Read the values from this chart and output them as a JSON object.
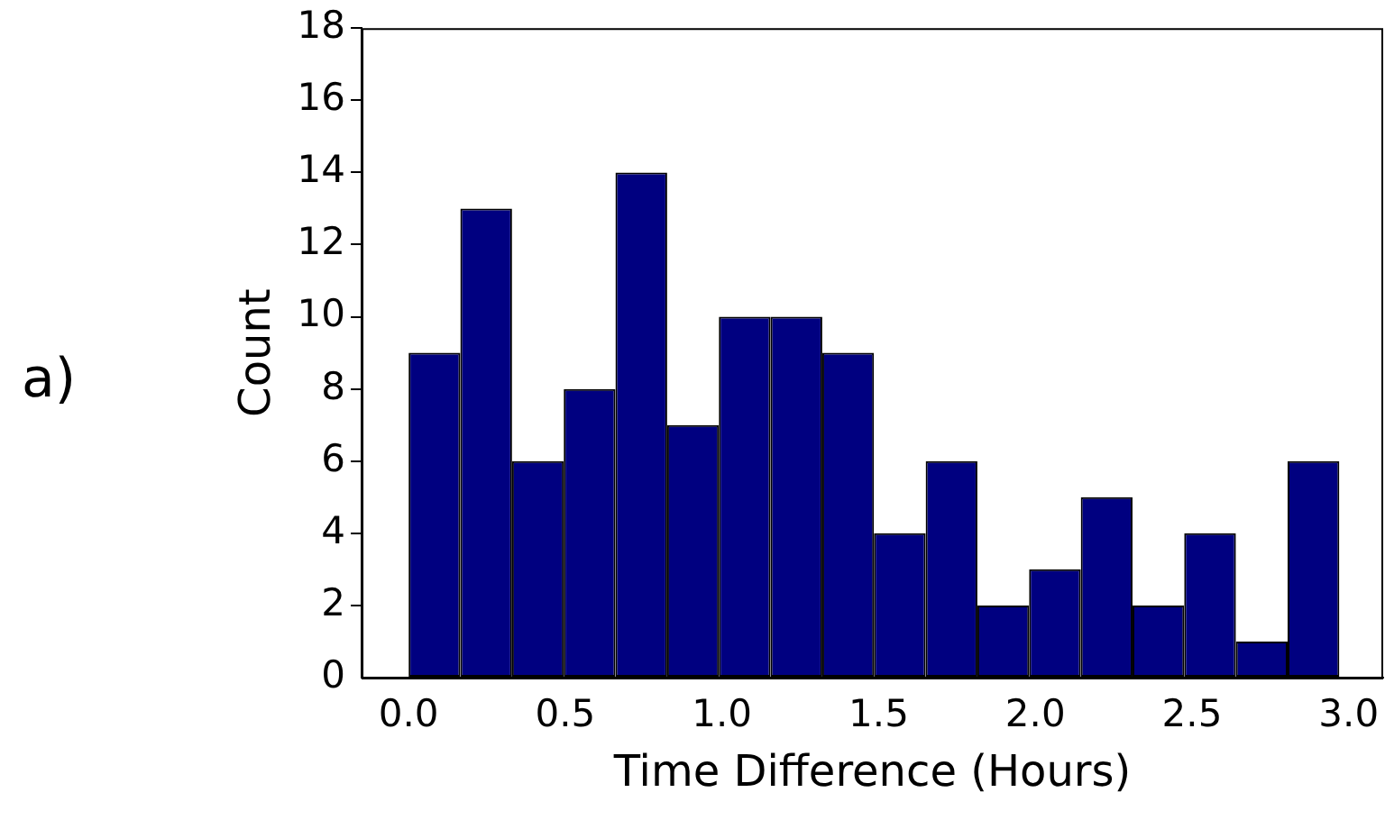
{
  "chart_data": {
    "type": "histogram",
    "xlabel": "Time Difference (Hours)",
    "ylabel": "Count",
    "bins": [
      0,
      0.165,
      0.33,
      0.495,
      0.66,
      0.825,
      0.99,
      1.155,
      1.32,
      1.485,
      1.65,
      1.815,
      1.98,
      2.145,
      2.31,
      2.475,
      2.64,
      2.805,
      2.97
    ],
    "values": [
      9,
      13,
      6,
      8,
      14,
      7,
      10,
      10,
      9,
      4,
      6,
      2,
      3,
      5,
      2,
      4,
      1,
      6
    ],
    "color": "#000080",
    "xlim": [
      -0.15,
      3.11
    ],
    "xticks": [
      {
        "value": 0,
        "label": "0.0"
      },
      {
        "value": 0.5,
        "label": "0.5"
      },
      {
        "value": 1,
        "label": "1.0"
      },
      {
        "value": 1.5,
        "label": "1.5"
      },
      {
        "value": 2,
        "label": "2.0"
      },
      {
        "value": 2.5,
        "label": "2.5"
      },
      {
        "value": 3,
        "label": "3.0"
      }
    ],
    "ylim": [
      0,
      18
    ],
    "yticks": [
      0,
      2,
      4,
      6,
      8,
      10,
      12,
      14,
      16,
      18
    ],
    "grid": false,
    "legend": false,
    "annotations": [
      "a)"
    ]
  }
}
